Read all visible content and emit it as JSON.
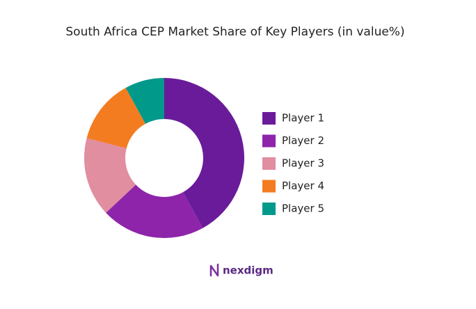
{
  "chart_data": {
    "type": "pie",
    "title": "South Africa CEP Market Share of Key Players (in value%)",
    "categories": [
      "Player 1",
      "Player 2",
      "Player 3",
      "Player 4",
      "Player 5"
    ],
    "values": [
      42,
      21,
      16,
      13,
      8
    ],
    "colors": [
      "#6a1b9a",
      "#8e24aa",
      "#e08ea0",
      "#f47c20",
      "#00998a"
    ],
    "donut": true
  },
  "logo": "nexdigm"
}
